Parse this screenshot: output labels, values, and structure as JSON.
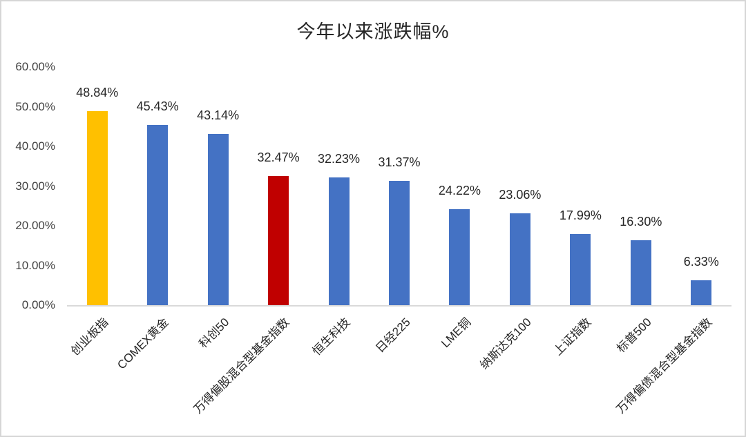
{
  "window": {
    "background": "#ffffff",
    "border_color": "#d6d6d6"
  },
  "chart_data": {
    "type": "bar",
    "title": "今年以来涨跌幅%",
    "categories": [
      "创业板指",
      "COMEX黄金",
      "科创50",
      "万得偏股混合型基金指数",
      "恒生科技",
      "日经225",
      "LME铜",
      "纳斯达克100",
      "上证指数",
      "标普500",
      "万得偏债混合型基金指数"
    ],
    "values": [
      48.84,
      45.43,
      43.14,
      32.47,
      32.23,
      31.37,
      24.22,
      23.06,
      17.99,
      16.3,
      6.33
    ],
    "data_labels": [
      "48.84%",
      "45.43%",
      "43.14%",
      "32.47%",
      "32.23%",
      "31.37%",
      "24.22%",
      "23.06%",
      "17.99%",
      "16.30%",
      "6.33%"
    ],
    "bar_colors": [
      "#FFC000",
      "#4472C4",
      "#4472C4",
      "#C00000",
      "#4472C4",
      "#4472C4",
      "#4472C4",
      "#4472C4",
      "#4472C4",
      "#4472C4",
      "#4472C4"
    ],
    "xlabel": "",
    "ylabel": "",
    "ylim": [
      0,
      60
    ],
    "y_axis": {
      "min": 0,
      "max": 60,
      "step": 10,
      "tick_labels": [
        "60.00%",
        "50.00%",
        "40.00%",
        "30.00%",
        "20.00%",
        "10.00%",
        "0.00%"
      ]
    },
    "grid": false,
    "legend_position": "none",
    "colors": {
      "default_bar": "#4472C4",
      "highlight_gold": "#FFC000",
      "highlight_red": "#C00000",
      "axis_line": "#d9d9d9",
      "text": "#262626"
    }
  }
}
